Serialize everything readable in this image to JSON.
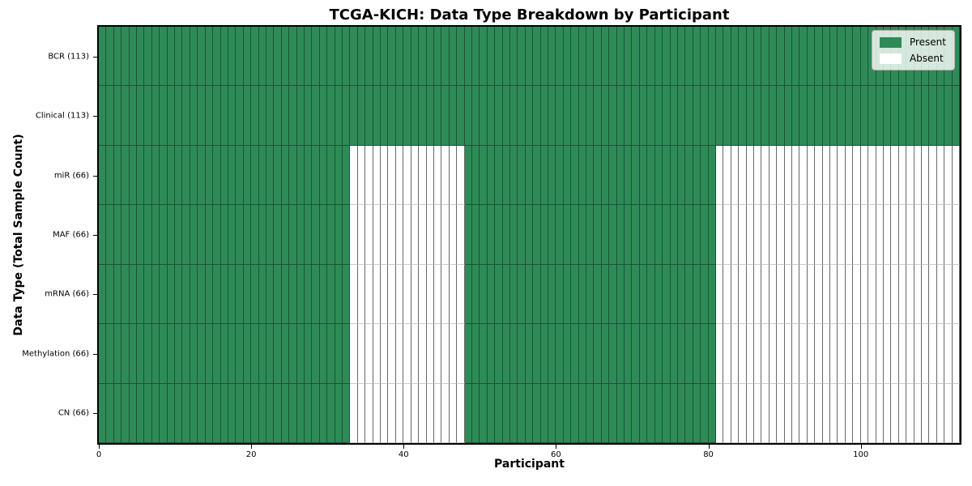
{
  "colors": {
    "present": "#2e8b57",
    "present_edge": "#1b5335",
    "absent": "#ffffff",
    "absent_edge_v": "#696969",
    "absent_edge_h": "#cccccc",
    "frame": "#000000"
  },
  "chart_data": {
    "type": "heatmap",
    "title": "TCGA-KICH: Data Type Breakdown by Participant",
    "xlabel": "Participant",
    "ylabel": "Data Type (Total Sample Count)",
    "n_participants": 113,
    "x_ticks": [
      0,
      20,
      40,
      60,
      80,
      100
    ],
    "legend_position": "upper right",
    "grid": false,
    "legend": [
      {
        "label": "Present",
        "color": "#2e8b57"
      },
      {
        "label": "Absent",
        "color": "#ffffff"
      }
    ],
    "rows": [
      {
        "label": "BCR (113)",
        "data_type": "BCR",
        "total_samples": 113,
        "present_count": 113,
        "absent_count": 0,
        "present_ranges": [
          [
            0,
            112
          ]
        ]
      },
      {
        "label": "Clinical (113)",
        "data_type": "Clinical",
        "total_samples": 113,
        "present_count": 113,
        "absent_count": 0,
        "present_ranges": [
          [
            0,
            112
          ]
        ]
      },
      {
        "label": "miR (66)",
        "data_type": "miR",
        "total_samples": 66,
        "present_count": 66,
        "absent_count": 47,
        "present_ranges": [
          [
            0,
            32
          ],
          [
            48,
            80
          ]
        ]
      },
      {
        "label": "MAF (66)",
        "data_type": "MAF",
        "total_samples": 66,
        "present_count": 66,
        "absent_count": 47,
        "present_ranges": [
          [
            0,
            32
          ],
          [
            48,
            80
          ]
        ]
      },
      {
        "label": "mRNA (66)",
        "data_type": "mRNA",
        "total_samples": 66,
        "present_count": 66,
        "absent_count": 47,
        "present_ranges": [
          [
            0,
            32
          ],
          [
            48,
            80
          ]
        ]
      },
      {
        "label": "Methylation (66)",
        "data_type": "Methylation",
        "total_samples": 66,
        "present_count": 66,
        "absent_count": 47,
        "present_ranges": [
          [
            0,
            32
          ],
          [
            48,
            80
          ]
        ]
      },
      {
        "label": "CN (66)",
        "data_type": "CN",
        "total_samples": 66,
        "present_count": 66,
        "absent_count": 47,
        "present_ranges": [
          [
            0,
            32
          ],
          [
            48,
            80
          ]
        ]
      }
    ]
  }
}
